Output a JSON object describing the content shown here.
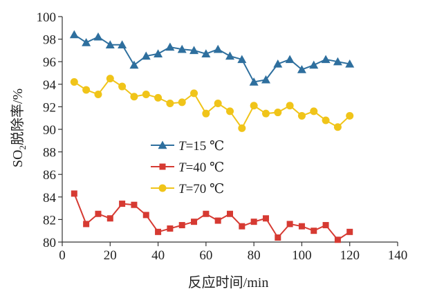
{
  "chart_data": {
    "type": "line",
    "title": "",
    "xlabel": "反应时间/min",
    "ylabel": {
      "pre": "SO",
      "sub": "2",
      "post": "脱除率/%"
    },
    "xlim": [
      0,
      140
    ],
    "ylim": [
      80,
      100
    ],
    "xticks": [
      0,
      20,
      40,
      60,
      80,
      100,
      120,
      140
    ],
    "yticks": [
      80,
      82,
      84,
      86,
      88,
      90,
      92,
      94,
      96,
      98,
      100
    ],
    "grid": false,
    "legend_position": "center-left",
    "x": [
      5,
      10,
      15,
      20,
      25,
      30,
      35,
      40,
      45,
      50,
      55,
      60,
      65,
      70,
      75,
      80,
      85,
      90,
      95,
      100,
      105,
      110,
      115,
      120
    ],
    "series": [
      {
        "name": "T=15 ℃",
        "legend_italic": "T",
        "legend_rest": "=15 ℃",
        "marker": "triangle",
        "color": "#2e6f9e",
        "values": [
          98.4,
          97.7,
          98.2,
          97.5,
          97.5,
          95.7,
          96.5,
          96.7,
          97.3,
          97.1,
          97.0,
          96.7,
          97.1,
          96.5,
          96.2,
          94.2,
          94.4,
          95.8,
          96.2,
          95.3,
          95.7,
          96.2,
          96.0,
          95.8
        ]
      },
      {
        "name": "T=40 ℃",
        "legend_italic": "T",
        "legend_rest": "=40 ℃",
        "marker": "square",
        "color": "#d63a32",
        "values": [
          84.3,
          81.6,
          82.5,
          82.1,
          83.4,
          83.3,
          82.4,
          80.9,
          81.2,
          81.5,
          81.8,
          82.5,
          81.9,
          82.5,
          81.4,
          81.8,
          82.1,
          80.4,
          81.6,
          81.4,
          81.0,
          81.5,
          80.2,
          80.9
        ]
      },
      {
        "name": "T=70 ℃",
        "legend_italic": "T",
        "legend_rest": "=70 ℃",
        "marker": "circle",
        "color": "#f0c419",
        "values": [
          94.2,
          93.5,
          93.1,
          94.5,
          93.8,
          92.9,
          93.1,
          92.8,
          92.3,
          92.4,
          93.2,
          91.4,
          92.3,
          91.6,
          90.1,
          92.1,
          91.4,
          91.5,
          92.1,
          91.2,
          91.6,
          90.8,
          90.2,
          91.2
        ]
      }
    ]
  }
}
